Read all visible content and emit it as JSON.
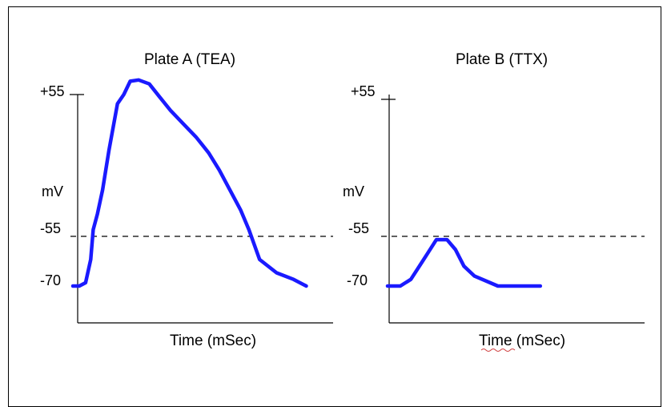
{
  "chart_data": [
    {
      "type": "line",
      "title": "Plate A (TEA)",
      "xlabel": "Time (mSec)",
      "ylabel": "mV",
      "y_ticks": [
        "+55",
        "-55",
        "-70"
      ],
      "threshold": -55,
      "threshold_style": "dashed",
      "series_color": "#1a1aff",
      "series": [
        {
          "name": "",
          "x": [
            0,
            1.5,
            3.0,
            4.2,
            4.8,
            5.8,
            7.0,
            8.5,
            10.5,
            12.0,
            13.5,
            15.5,
            18.0,
            20.5,
            23.0,
            26.0,
            29.0,
            32.0,
            34.5,
            37.0,
            39.5,
            41.5,
            44.0,
            48.0,
            52.0,
            55.0
          ],
          "y": [
            -70,
            -70,
            -69,
            -62,
            -50,
            -38,
            -20,
            10,
            45,
            52,
            62,
            63,
            60,
            50,
            40,
            30,
            20,
            8,
            -5,
            -20,
            -35,
            -50,
            -62,
            -66,
            -68,
            -70
          ]
        }
      ]
    },
    {
      "type": "line",
      "title": "Plate B (TTX)",
      "xlabel": "Time (mSec)",
      "ylabel": "mV",
      "y_ticks": [
        "+55",
        "-55",
        "-70"
      ],
      "threshold": -55,
      "threshold_style": "dashed",
      "series_color": "#1a1aff",
      "series": [
        {
          "name": "",
          "x": [
            0,
            3.0,
            5.5,
            8.0,
            9.5,
            11.5,
            14.0,
            16.0,
            18.0,
            20.5,
            26.0,
            30.0,
            36.0
          ],
          "y": [
            -70,
            -70,
            -68,
            -63,
            -60,
            -56,
            -56,
            -59,
            -64,
            -67,
            -70,
            -70,
            -70
          ]
        }
      ]
    }
  ]
}
